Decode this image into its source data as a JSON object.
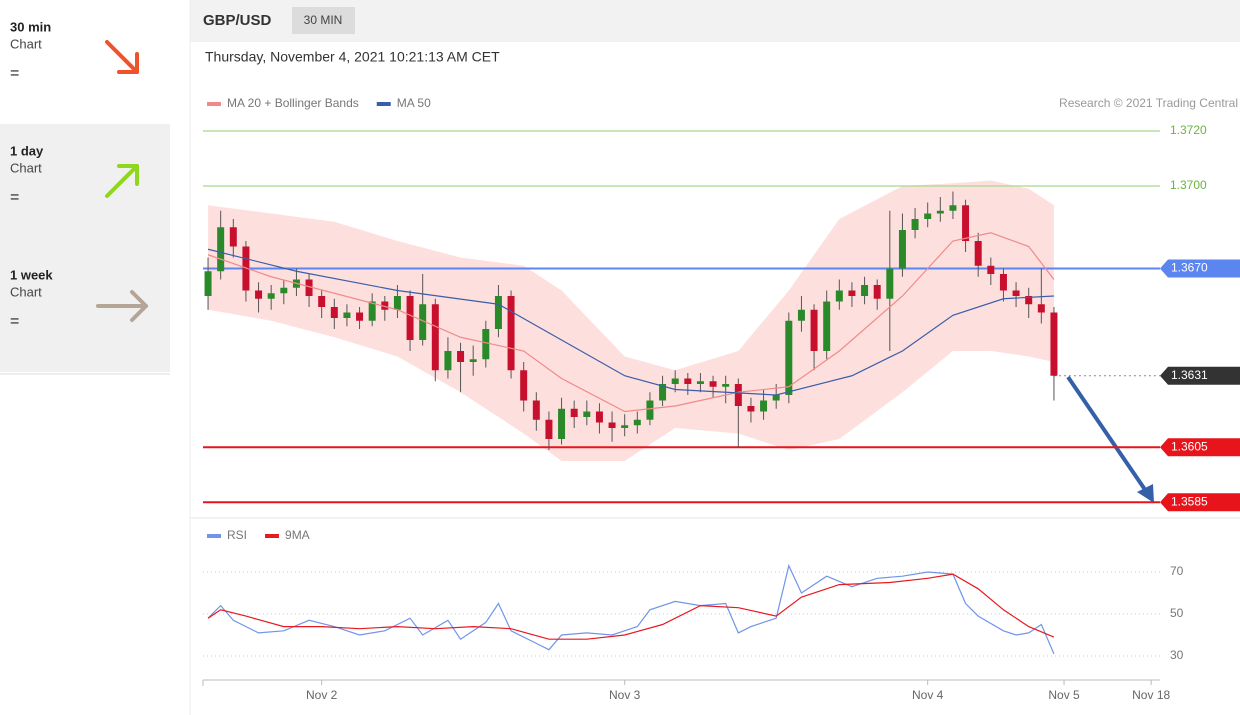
{
  "sidebar": [
    {
      "period": "30 min",
      "text": "Chart",
      "status": "=",
      "direction": "down",
      "color": "#f0522a",
      "background": "#ffffff"
    },
    {
      "period": "1 day",
      "text": "Chart",
      "status": "=",
      "direction": "up",
      "color": "#8fd61c",
      "background": "#f0f0f0"
    },
    {
      "period": "1 week",
      "text": "Chart",
      "status": "=",
      "direction": "flat",
      "color": "#b5a596",
      "background": "#f0f0f0"
    }
  ],
  "header": {
    "symbol": "GBP/USD",
    "timeframe": "30 MIN",
    "timestamp": "Thursday, November 4, 2021 10:21:13 AM CET",
    "credit": "Research © 2021 Trading Central"
  },
  "chart_data": [
    {
      "type": "candlestick",
      "up_color": "#2a8a2a",
      "down_color": "#c8102e",
      "xlim": [
        -0.4,
        75.4
      ],
      "ylim": [
        1.358,
        1.3725
      ],
      "open": [
        1.366,
        1.3669,
        1.3685,
        1.3678,
        1.3662,
        1.3659,
        1.3661,
        1.3663,
        1.3666,
        1.366,
        1.3656,
        1.3652,
        1.3654,
        1.3651,
        1.3658,
        1.3655,
        1.366,
        1.3644,
        1.3657,
        1.3633,
        1.364,
        1.3636,
        1.3637,
        1.3648,
        1.366,
        1.3633,
        1.3622,
        1.3615,
        1.3608,
        1.3619,
        1.3616,
        1.3618,
        1.3614,
        1.3612,
        1.3613,
        1.3615,
        1.3622,
        1.3628,
        1.363,
        1.3628,
        1.3629,
        1.3627,
        1.3628,
        1.362,
        1.3618,
        1.3622,
        1.3624,
        1.3651,
        1.3655,
        1.364,
        1.3658,
        1.3662,
        1.366,
        1.3664,
        1.3659,
        1.367,
        1.3684,
        1.3688,
        1.369,
        1.3691,
        1.3693,
        1.368,
        1.3671,
        1.3668,
        1.3662,
        1.366,
        1.3657,
        1.3654
      ],
      "high": [
        1.3674,
        1.3691,
        1.3688,
        1.368,
        1.3665,
        1.3664,
        1.3666,
        1.367,
        1.3668,
        1.3662,
        1.3659,
        1.3657,
        1.3656,
        1.3661,
        1.366,
        1.3664,
        1.3662,
        1.3668,
        1.3659,
        1.3645,
        1.3643,
        1.3642,
        1.3651,
        1.3664,
        1.3662,
        1.3636,
        1.3625,
        1.3618,
        1.3623,
        1.3622,
        1.3622,
        1.3621,
        1.3618,
        1.3617,
        1.3618,
        1.3625,
        1.3631,
        1.3633,
        1.3632,
        1.3632,
        1.3631,
        1.3631,
        1.363,
        1.3623,
        1.3626,
        1.3628,
        1.3654,
        1.366,
        1.3657,
        1.3662,
        1.3666,
        1.3665,
        1.3667,
        1.3666,
        1.3691,
        1.369,
        1.3692,
        1.3694,
        1.3696,
        1.3698,
        1.3695,
        1.3683,
        1.3674,
        1.367,
        1.3665,
        1.3663,
        1.367,
        1.3656
      ],
      "low": [
        1.3655,
        1.3666,
        1.3674,
        1.3658,
        1.3654,
        1.3655,
        1.3657,
        1.366,
        1.3656,
        1.3652,
        1.3648,
        1.3649,
        1.3648,
        1.3649,
        1.3651,
        1.3652,
        1.364,
        1.3642,
        1.3629,
        1.363,
        1.3625,
        1.3631,
        1.3634,
        1.3645,
        1.363,
        1.3618,
        1.3611,
        1.3604,
        1.3606,
        1.3612,
        1.3613,
        1.361,
        1.3607,
        1.3609,
        1.361,
        1.3613,
        1.362,
        1.3625,
        1.3624,
        1.3625,
        1.3623,
        1.3621,
        1.3605,
        1.3614,
        1.3615,
        1.3619,
        1.3621,
        1.3647,
        1.3633,
        1.3637,
        1.3655,
        1.3656,
        1.3657,
        1.3655,
        1.364,
        1.3667,
        1.3681,
        1.3685,
        1.3687,
        1.3688,
        1.3676,
        1.3667,
        1.3664,
        1.3658,
        1.3656,
        1.3652,
        1.365,
        1.3622
      ],
      "close": [
        1.3669,
        1.3685,
        1.3678,
        1.3662,
        1.3659,
        1.3661,
        1.3663,
        1.3666,
        1.366,
        1.3656,
        1.3652,
        1.3654,
        1.3651,
        1.3658,
        1.3655,
        1.366,
        1.3644,
        1.3657,
        1.3633,
        1.364,
        1.3636,
        1.3637,
        1.3648,
        1.366,
        1.3633,
        1.3622,
        1.3615,
        1.3608,
        1.3619,
        1.3616,
        1.3618,
        1.3614,
        1.3612,
        1.3613,
        1.3615,
        1.3622,
        1.3628,
        1.363,
        1.3628,
        1.3629,
        1.3627,
        1.3628,
        1.362,
        1.3618,
        1.3622,
        1.3624,
        1.3651,
        1.3655,
        1.364,
        1.3658,
        1.3662,
        1.366,
        1.3664,
        1.3659,
        1.367,
        1.3684,
        1.3688,
        1.369,
        1.3691,
        1.3693,
        1.368,
        1.3671,
        1.3668,
        1.3662,
        1.366,
        1.3657,
        1.3654,
        1.3631
      ],
      "series": [
        {
          "name": "MA 20 + Bollinger Bands",
          "color": "#f08a8a",
          "band_color": "#fde0de",
          "x": [
            0,
            5,
            10,
            15,
            20,
            25,
            28,
            33,
            37,
            42,
            46,
            50,
            55,
            59,
            62,
            65,
            67
          ],
          "values": [
            1.3675,
            1.3667,
            1.3661,
            1.3655,
            1.3645,
            1.364,
            1.363,
            1.3618,
            1.362,
            1.3625,
            1.3627,
            1.364,
            1.366,
            1.368,
            1.3683,
            1.3678,
            1.3666
          ],
          "upper": [
            1.3693,
            1.369,
            1.3687,
            1.368,
            1.3674,
            1.3671,
            1.3662,
            1.3638,
            1.3633,
            1.364,
            1.3662,
            1.3688,
            1.37,
            1.3701,
            1.3702,
            1.3699,
            1.3693
          ],
          "lower": [
            1.3655,
            1.3651,
            1.3645,
            1.3638,
            1.3625,
            1.361,
            1.36,
            1.36,
            1.3612,
            1.361,
            1.3604,
            1.3608,
            1.3625,
            1.364,
            1.364,
            1.3638,
            1.3636
          ]
        },
        {
          "name": "MA 50",
          "color": "#3b5ea8",
          "x": [
            0,
            7,
            15,
            23,
            28,
            33,
            37,
            45,
            51,
            55,
            59,
            63,
            67
          ],
          "values": [
            1.3677,
            1.3669,
            1.3662,
            1.3657,
            1.3644,
            1.3631,
            1.3626,
            1.3624,
            1.3631,
            1.364,
            1.3653,
            1.3659,
            1.366
          ]
        }
      ],
      "levels": [
        {
          "value": 1.372,
          "label": "1.3720",
          "color": "#a8d88a",
          "style": "text"
        },
        {
          "value": 1.37,
          "label": "1.3700",
          "color": "#a8d88a",
          "style": "text"
        },
        {
          "value": 1.367,
          "label": "1.3670",
          "color": "#5b86f0",
          "style": "tag"
        },
        {
          "value": 1.3631,
          "label": "1.3631",
          "color": "#333333",
          "style": "dotted-tag"
        },
        {
          "value": 1.3605,
          "label": "1.3605",
          "color": "#e8141c",
          "style": "tag"
        },
        {
          "value": 1.3585,
          "label": "1.3585",
          "color": "#e8141c",
          "style": "tag"
        }
      ]
    },
    {
      "type": "line",
      "xlim": [
        -0.4,
        75.4
      ],
      "ylim": [
        20,
        85
      ],
      "yticks": [
        30,
        50,
        70
      ],
      "grid": true,
      "xticks": [
        {
          "value": 9,
          "label": "Nov 2"
        },
        {
          "value": 33,
          "label": "Nov 3"
        },
        {
          "value": 57,
          "label": "Nov 4"
        },
        {
          "value": 67.8,
          "label": "Nov 5"
        },
        {
          "value": 74.7,
          "label": "Nov 18"
        }
      ],
      "series": [
        {
          "name": "RSI",
          "color": "#7095e8",
          "x": [
            0,
            1,
            2,
            4,
            6,
            8,
            10,
            12,
            14,
            16,
            17,
            19,
            20,
            22,
            23,
            24,
            26,
            27,
            28,
            30,
            32,
            34,
            35,
            37,
            39,
            41,
            42,
            43,
            45,
            46,
            47,
            49,
            51,
            53,
            55,
            57,
            59,
            60,
            61,
            63,
            64,
            65,
            66,
            67
          ],
          "values": [
            48,
            54,
            47,
            41,
            42,
            47,
            44,
            40,
            42,
            48,
            40,
            47,
            38,
            46,
            55,
            42,
            36,
            33,
            40,
            41,
            40,
            44,
            52,
            56,
            54,
            55,
            41,
            44,
            48,
            73,
            60,
            68,
            63,
            67,
            68,
            70,
            69,
            55,
            49,
            42,
            40,
            41,
            45,
            31
          ]
        },
        {
          "name": "9MA",
          "color": "#e8191f",
          "x": [
            0,
            1,
            3,
            6,
            9,
            12,
            15,
            18,
            21,
            24,
            27,
            30,
            33,
            36,
            39,
            42,
            45,
            47,
            50,
            54,
            57,
            59,
            61,
            63,
            65,
            67
          ],
          "values": [
            48,
            52,
            49,
            44,
            44,
            43,
            44,
            43,
            44,
            43,
            38,
            38,
            40,
            45,
            54,
            53,
            49,
            58,
            64,
            65,
            67,
            69,
            62,
            52,
            44,
            39
          ]
        }
      ]
    }
  ]
}
